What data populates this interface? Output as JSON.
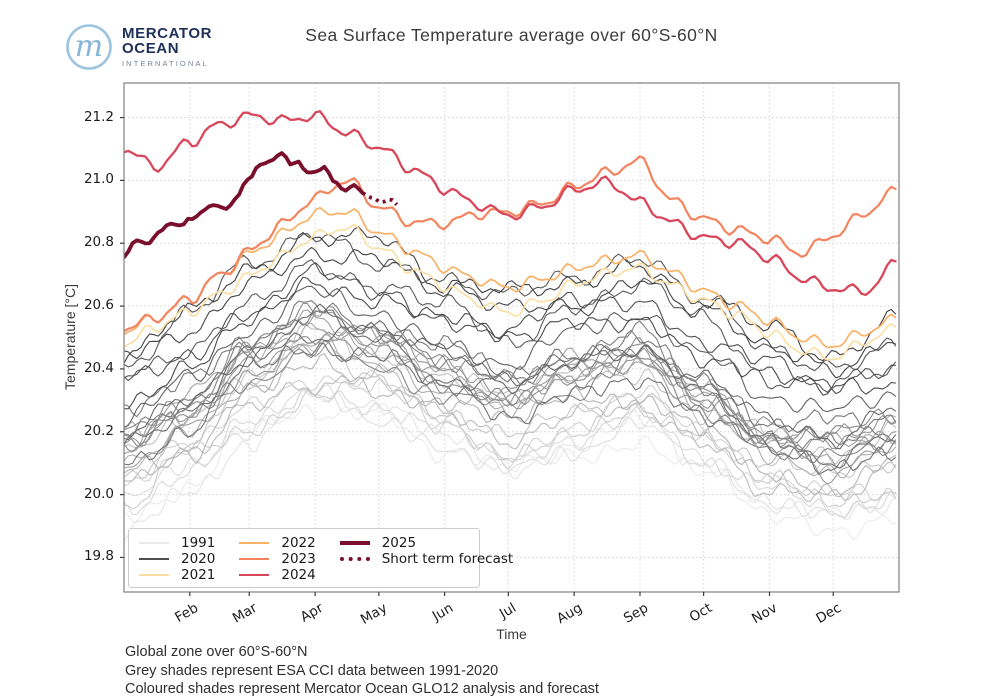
{
  "header": {
    "brand_line1": "MERCATOR",
    "brand_line2": "OCEAN",
    "brand_line3": "INTERNATIONAL",
    "monogram": "m",
    "logo_blue": "#8fbcdd",
    "logo_navy": "#203059",
    "title": "Sea Surface Temperature average over 60°S-60°N"
  },
  "footnotes": [
    "Global zone over 60°S-60°N",
    "Grey shades represent ESA CCI data between 1991-2020",
    "Coloured shades represent Mercator Ocean GLO12 analysis and forecast"
  ],
  "chart_data": {
    "type": "line",
    "title": "Sea Surface Temperature average over 60°S-60°N",
    "xlabel": "Time",
    "ylabel": "Temperature [°C]",
    "ylim": [
      19.69,
      21.31
    ],
    "yticks": [
      19.8,
      20.0,
      20.2,
      20.4,
      20.6,
      20.8,
      21.0,
      21.2
    ],
    "grid": true,
    "legend_position": "lower left",
    "xticks": [
      {
        "label": "Feb",
        "f": 0.0849
      },
      {
        "label": "Mar",
        "f": 0.1616
      },
      {
        "label": "Apr",
        "f": 0.2466
      },
      {
        "label": "May",
        "f": 0.3288
      },
      {
        "label": "Jun",
        "f": 0.4137
      },
      {
        "label": "Jul",
        "f": 0.4959
      },
      {
        "label": "Aug",
        "f": 0.5808
      },
      {
        "label": "Sep",
        "f": 0.6658
      },
      {
        "label": "Oct",
        "f": 0.7479
      },
      {
        "label": "Nov",
        "f": 0.8329
      },
      {
        "label": "Dec",
        "f": 0.9151
      }
    ],
    "f_biweekly": [
      0.0,
      0.042,
      0.085,
      0.123,
      0.162,
      0.204,
      0.247,
      0.288,
      0.329,
      0.371,
      0.414,
      0.455,
      0.496,
      0.538,
      0.581,
      0.623,
      0.666,
      0.707,
      0.748,
      0.79,
      0.833,
      0.874,
      0.915,
      0.958,
      1.0
    ],
    "series": [
      {
        "name": "2021",
        "color": "#fbdfa2",
        "width": 1.6,
        "jitter": 0.012,
        "v": [
          20.48,
          20.53,
          20.58,
          20.64,
          20.7,
          20.76,
          20.82,
          20.85,
          20.79,
          20.72,
          20.66,
          20.61,
          20.58,
          20.62,
          20.67,
          20.7,
          20.72,
          20.67,
          20.62,
          20.57,
          20.51,
          20.46,
          20.44,
          20.49,
          20.53
        ]
      },
      {
        "name": "2022",
        "color": "#f9b168",
        "width": 1.7,
        "jitter": 0.012,
        "v": [
          20.52,
          20.56,
          20.62,
          20.7,
          20.77,
          20.83,
          20.89,
          20.9,
          20.84,
          20.78,
          20.72,
          20.68,
          20.66,
          20.69,
          20.72,
          20.74,
          20.76,
          20.71,
          20.65,
          20.6,
          20.55,
          20.5,
          20.48,
          20.52,
          20.56
        ]
      },
      {
        "name": "2023",
        "color": "#f4845e",
        "width": 2.2,
        "jitter": 0.012,
        "v": [
          20.53,
          20.56,
          20.62,
          20.7,
          20.78,
          20.86,
          20.94,
          21.0,
          20.92,
          20.87,
          20.86,
          20.89,
          20.9,
          20.93,
          20.98,
          21.02,
          21.06,
          20.94,
          20.88,
          20.84,
          20.81,
          20.77,
          20.83,
          20.9,
          20.97
        ]
      },
      {
        "name": "2024",
        "color": "#d8465a",
        "width": 2.3,
        "jitter": 0.012,
        "v": [
          21.1,
          21.04,
          21.12,
          21.18,
          21.21,
          21.19,
          21.2,
          21.15,
          21.11,
          21.04,
          20.97,
          20.92,
          20.89,
          20.92,
          20.97,
          20.99,
          20.93,
          20.87,
          20.82,
          20.8,
          20.75,
          20.69,
          20.66,
          20.65,
          20.74
        ]
      },
      {
        "name": "2025",
        "color": "#7a0f2d",
        "width": 3.8,
        "jitter": 0.005,
        "f": [
          0.0,
          0.015,
          0.03,
          0.045,
          0.06,
          0.075,
          0.085,
          0.1,
          0.115,
          0.13,
          0.145,
          0.16,
          0.175,
          0.19,
          0.205,
          0.215,
          0.225,
          0.235,
          0.25,
          0.26,
          0.27,
          0.285,
          0.295,
          0.308
        ],
        "v": [
          20.76,
          20.81,
          20.79,
          20.84,
          20.86,
          20.85,
          20.88,
          20.9,
          20.92,
          20.91,
          20.95,
          21.0,
          21.05,
          21.07,
          21.08,
          21.05,
          21.06,
          21.03,
          21.02,
          21.04,
          21.0,
          20.97,
          20.98,
          20.96
        ]
      },
      {
        "name": "Short term forecast",
        "color": "#7a0f2d",
        "width": 3.8,
        "jitter": 0.004,
        "style": "dotted",
        "f": [
          0.308,
          0.32,
          0.332,
          0.344,
          0.352
        ],
        "v": [
          20.96,
          20.95,
          20.93,
          20.94,
          20.92
        ]
      }
    ],
    "grey_ensemble": {
      "description": "ESA CCI data between 1991-2020",
      "color_light": "#eaeaea",
      "color_dark": "#3f3f3f",
      "width": 1.1,
      "jitter": 0.018,
      "anchor_wobble": 0.1,
      "base_f": [
        0.0,
        0.0849,
        0.1616,
        0.2466,
        0.3288,
        0.4137,
        0.4959,
        0.5808,
        0.6658,
        0.7479,
        0.8329,
        0.9151,
        1.0
      ],
      "base_v": [
        20.18,
        20.3,
        20.44,
        20.55,
        20.5,
        20.4,
        20.33,
        20.4,
        20.46,
        20.34,
        20.2,
        20.16,
        20.22
      ],
      "years": [
        {
          "year": 1991,
          "offset": -0.26
        },
        {
          "year": 1992,
          "offset": -0.25
        },
        {
          "year": 1993,
          "offset": -0.24
        },
        {
          "year": 1994,
          "offset": -0.21
        },
        {
          "year": 1995,
          "offset": -0.17
        },
        {
          "year": 1996,
          "offset": -0.2
        },
        {
          "year": 1997,
          "offset": -0.11
        },
        {
          "year": 1998,
          "offset": -0.04
        },
        {
          "year": 1999,
          "offset": -0.16
        },
        {
          "year": 2000,
          "offset": -0.13
        },
        {
          "year": 2001,
          "offset": -0.07
        },
        {
          "year": 2002,
          "offset": -0.02
        },
        {
          "year": 2003,
          "offset": -0.01
        },
        {
          "year": 2004,
          "offset": -0.05
        },
        {
          "year": 2005,
          "offset": 0.0
        },
        {
          "year": 2006,
          "offset": -0.02
        },
        {
          "year": 2007,
          "offset": 0.01
        },
        {
          "year": 2008,
          "offset": -0.06
        },
        {
          "year": 2009,
          "offset": 0.02
        },
        {
          "year": 2010,
          "offset": 0.04
        },
        {
          "year": 2011,
          "offset": -0.06
        },
        {
          "year": 2012,
          "offset": -0.01
        },
        {
          "year": 2013,
          "offset": 0.04
        },
        {
          "year": 2014,
          "offset": 0.08
        },
        {
          "year": 2015,
          "offset": 0.18
        },
        {
          "year": 2016,
          "offset": 0.26
        },
        {
          "year": 2017,
          "offset": 0.18
        },
        {
          "year": 2018,
          "offset": 0.14
        },
        {
          "year": 2019,
          "offset": 0.24
        },
        {
          "year": 2020,
          "offset": 0.3
        }
      ]
    },
    "legend": [
      {
        "label": "1991",
        "color": "#eaeaea",
        "style": "solid",
        "thick": false
      },
      {
        "label": "2020",
        "color": "#4d4d4d",
        "style": "solid",
        "thick": false
      },
      {
        "label": "2021",
        "color": "#fbdfa2",
        "style": "solid",
        "thick": false
      },
      {
        "label": "2022",
        "color": "#f9b168",
        "style": "solid",
        "thick": false
      },
      {
        "label": "2023",
        "color": "#f4845e",
        "style": "solid",
        "thick": false
      },
      {
        "label": "2024",
        "color": "#d8465a",
        "style": "solid",
        "thick": false
      },
      {
        "label": "2025",
        "color": "#7a0f2d",
        "style": "solid",
        "thick": true
      },
      {
        "label": "Short term forecast",
        "color": "#7a0f2d",
        "style": "dotted",
        "thick": true
      }
    ]
  }
}
